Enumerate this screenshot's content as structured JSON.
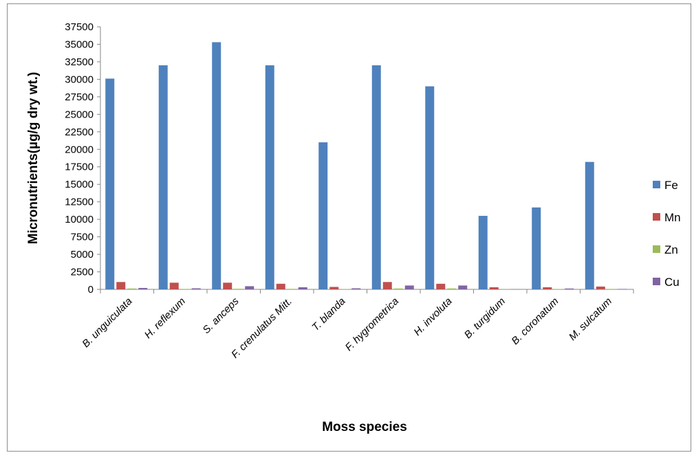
{
  "chart_data": {
    "type": "bar",
    "title": "",
    "xlabel": "Moss species",
    "ylabel": "Micronutrients(µg/g dry wt.)",
    "ylim": [
      0,
      37500
    ],
    "ytick_step": 2500,
    "ytick_labels": [
      "0",
      "2500",
      "5000",
      "7500",
      "10000",
      "12500",
      "15000",
      "17500",
      "20000",
      "22500",
      "25000",
      "27500",
      "30000",
      "32500",
      "35000",
      "37500"
    ],
    "grid": false,
    "legend_position": "right",
    "categories": [
      "B. unguiculata",
      "H.  reflexum",
      "S. anceps",
      "F. crenulatus Mitt.",
      "T. blanda",
      "F. hygrometrica",
      "H. involuta",
      "B. turgidum",
      "B. coronatum",
      "M. sulcatum"
    ],
    "series": [
      {
        "name": "Fe",
        "color": "#4f81bd",
        "values": [
          30100,
          32000,
          35300,
          32000,
          21000,
          32000,
          29000,
          10500,
          11700,
          18200
        ]
      },
      {
        "name": "Mn",
        "color": "#c0504d",
        "values": [
          1050,
          950,
          950,
          800,
          350,
          1050,
          800,
          300,
          300,
          400
        ]
      },
      {
        "name": "Zn",
        "color": "#9bbb59",
        "values": [
          120,
          60,
          80,
          70,
          40,
          120,
          130,
          30,
          40,
          60
        ]
      },
      {
        "name": "Cu",
        "color": "#8064a2",
        "values": [
          200,
          150,
          450,
          300,
          150,
          550,
          550,
          30,
          120,
          60
        ]
      }
    ]
  }
}
